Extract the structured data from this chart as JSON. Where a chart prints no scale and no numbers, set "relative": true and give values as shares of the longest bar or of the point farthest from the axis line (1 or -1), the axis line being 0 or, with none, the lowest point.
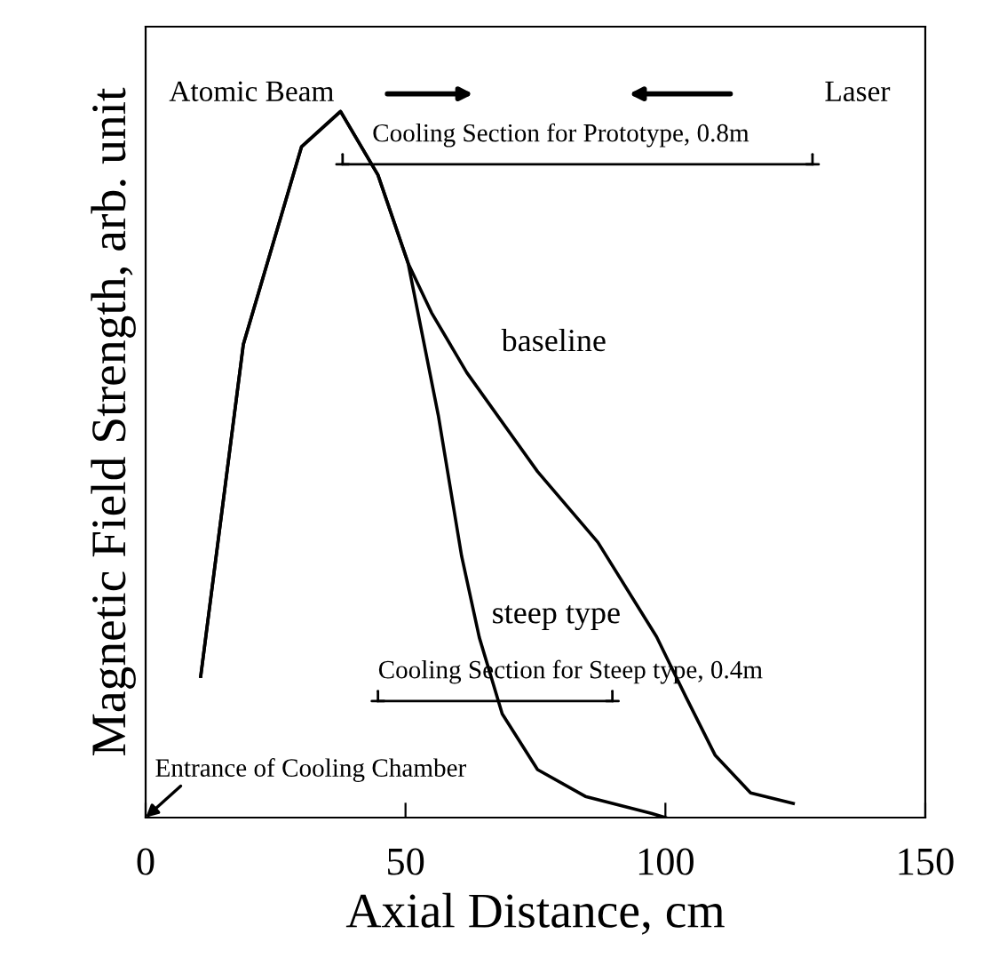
{
  "chart_data": {
    "type": "line",
    "xlabel": "Axial Distance, cm",
    "ylabel": "Magnetic Field Strength, arb. unit",
    "relative": true,
    "xlim": [
      0,
      150
    ],
    "xticks": [
      0,
      50,
      100,
      150
    ],
    "grid": false,
    "marker": "none",
    "line_style": "solid",
    "series": [
      {
        "name": "baseline",
        "color": "#000000",
        "x": [
          10.6,
          18.8,
          30,
          37.5,
          44.7,
          50.5,
          55,
          61.8,
          75.4,
          87,
          98.3,
          104,
          109.6,
          116.4,
          124.6
        ],
        "values": [
          0.2,
          0.67,
          0.95,
          1.0,
          0.91,
          0.785,
          0.715,
          0.63,
          0.49,
          0.39,
          0.256,
          0.17,
          0.088,
          0.035,
          0.02
        ]
      },
      {
        "name": "steep type",
        "color": "#000000",
        "x": [
          10.6,
          18.8,
          30,
          37.5,
          44.7,
          50.5,
          56.3,
          60.8,
          64.2,
          68.6,
          75.4,
          84.6,
          97.3,
          100
        ],
        "values": [
          0.2,
          0.67,
          0.95,
          1.0,
          0.91,
          0.785,
          0.57,
          0.37,
          0.255,
          0.147,
          0.068,
          0.03,
          0.006,
          0.0
        ]
      },
      {
        "color": "#000000",
        "x": [
          37.9,
          128.3
        ],
        "values": [
          0.925,
          0.925
        ]
      },
      {
        "color": "#000000",
        "x": [
          44.7,
          89.8
        ],
        "values": [
          0.165,
          0.165
        ]
      }
    ],
    "annotations": [
      "Atomic Beam",
      "Laser",
      {
        "text": "Cooling Section for Prototype, 0.8m",
        "x": 37.9,
        "y": 0.925
      },
      {
        "text": "Cooling Section for Steep type, 0.4m",
        "x": 44.7,
        "y": 0.165
      },
      "Entrance of Cooling Chamber"
    ]
  }
}
